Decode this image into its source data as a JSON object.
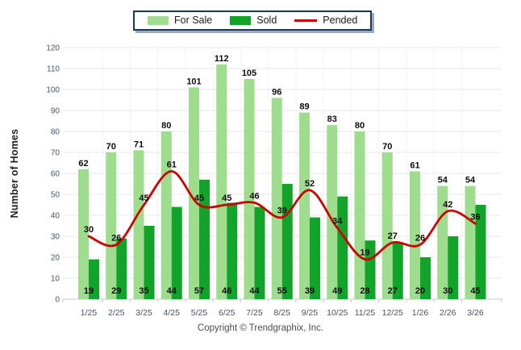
{
  "legend": {
    "items": [
      {
        "label": "For Sale",
        "swatch": "square",
        "color": "#9EDC8E"
      },
      {
        "label": "Sold",
        "swatch": "square",
        "color": "#12A32B"
      },
      {
        "label": "Pended",
        "swatch": "line",
        "color": "#CC0000"
      }
    ]
  },
  "chart_data": {
    "type": "bar",
    "title": "",
    "ylabel": "Number of Homes",
    "xlabel": "",
    "ylim": [
      0,
      120
    ],
    "ytick_step": 10,
    "grid": true,
    "legend_position": "top-center",
    "categories": [
      "1/25",
      "2/25",
      "3/25",
      "4/25",
      "5/25",
      "6/25",
      "7/25",
      "8/25",
      "9/25",
      "10/25",
      "11/25",
      "12/25",
      "1/26",
      "2/26",
      "3/26"
    ],
    "series": [
      {
        "name": "For Sale",
        "type": "bar",
        "color": "#9EDC8E",
        "values": [
          62,
          70,
          71,
          80,
          101,
          112,
          105,
          96,
          89,
          83,
          80,
          70,
          61,
          54,
          54
        ]
      },
      {
        "name": "Sold",
        "type": "bar",
        "color": "#12A32B",
        "values": [
          19,
          29,
          35,
          44,
          57,
          46,
          44,
          55,
          39,
          49,
          28,
          27,
          20,
          30,
          45
        ]
      },
      {
        "name": "Pended",
        "type": "line",
        "color": "#CC0000",
        "values": [
          30,
          26,
          45,
          61,
          45,
          45,
          46,
          39,
          52,
          34,
          19,
          27,
          26,
          42,
          36
        ]
      }
    ]
  },
  "footer": {
    "copyright": "Copyright © Trendgraphix, Inc."
  }
}
